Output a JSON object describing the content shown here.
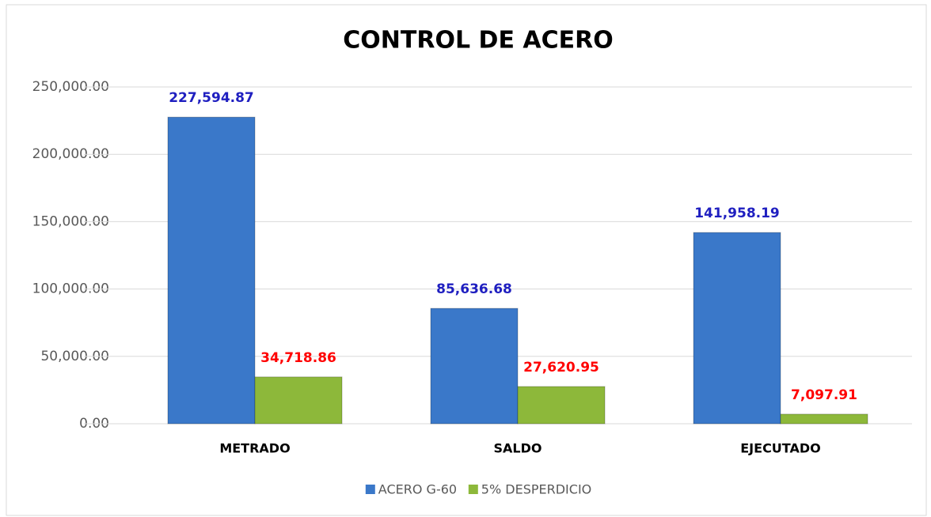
{
  "chart_data": {
    "type": "bar",
    "title": "CONTROL DE ACERO",
    "categories": [
      "METRADO",
      "SALDO",
      "EJECUTADO"
    ],
    "series": [
      {
        "name": "ACERO G-60",
        "color": "#3a78c9",
        "label_color": "#1f1fc0",
        "values": [
          227594.87,
          85636.68,
          141958.19
        ],
        "value_labels": [
          "227,594.87",
          "85,636.68",
          "141,958.19"
        ]
      },
      {
        "name": "5% DESPERDICIO",
        "color": "#8db83a",
        "label_color": "#ff0000",
        "values": [
          34718.86,
          27620.95,
          7097.91
        ],
        "value_labels": [
          "34,718.86",
          "27,620.95",
          "7,097.91"
        ]
      }
    ],
    "ylim": [
      0,
      250000
    ],
    "yticks": [
      {
        "value": 0,
        "label": "0.00"
      },
      {
        "value": 50000,
        "label": "50,000.00"
      },
      {
        "value": 100000,
        "label": "100,000.00"
      },
      {
        "value": 150000,
        "label": "150,000.00"
      },
      {
        "value": 200000,
        "label": "200,000.00"
      },
      {
        "value": 250000,
        "label": "250,000.00"
      }
    ],
    "grid": true,
    "legend": "bottom"
  }
}
